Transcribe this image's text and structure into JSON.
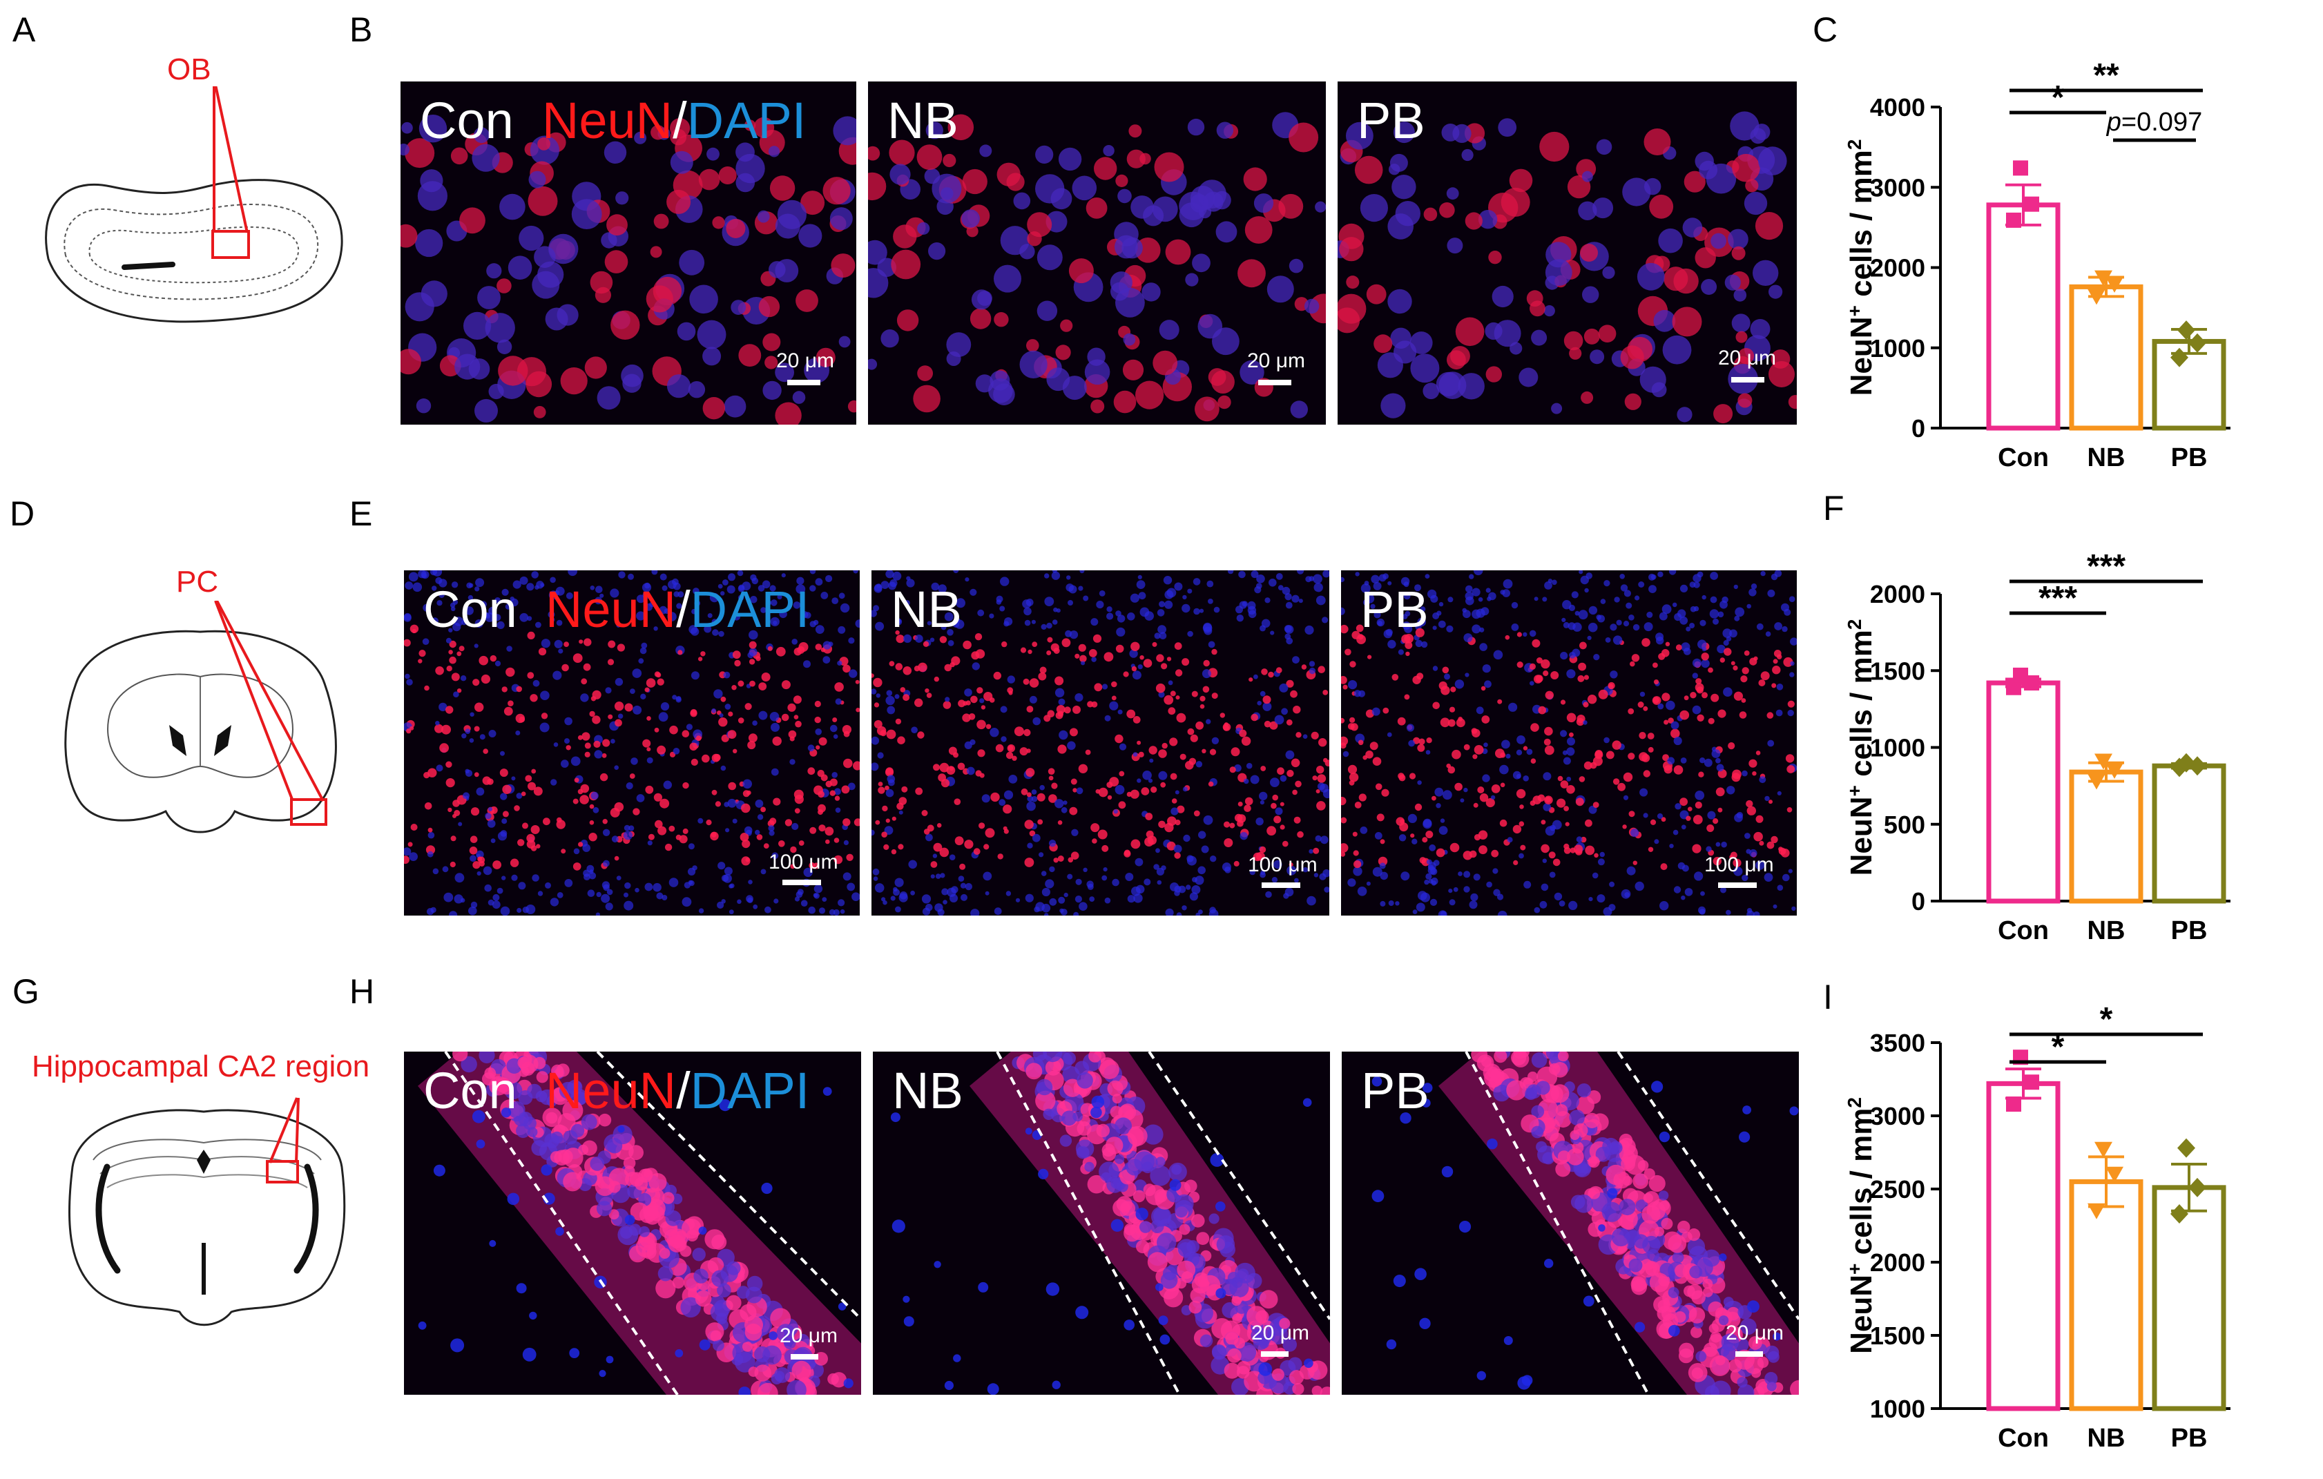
{
  "panel_letters": [
    "A",
    "B",
    "C",
    "D",
    "E",
    "F",
    "G",
    "H",
    "I"
  ],
  "regions": {
    "ob": "OB",
    "pc": "PC",
    "ca2": "Hippocampal CA2 region"
  },
  "micro": {
    "group_labels": [
      "Con",
      "NB",
      "PB"
    ],
    "stain": {
      "neun": "NeuN",
      "sep": "/",
      "dapi": "DAPI"
    },
    "scalebars": {
      "row1": "20 μm",
      "row2": "100 μm",
      "row3": "20 μm"
    }
  },
  "colors": {
    "con": "#ee2a8b",
    "nb": "#f7941d",
    "pb": "#7f7f1a",
    "region": "#e8191d"
  },
  "chart_data": [
    {
      "type": "bar",
      "panel": "C",
      "categories": [
        "Con",
        "NB",
        "PB"
      ],
      "values": [
        2780,
        1760,
        1080
      ],
      "sem": [
        250,
        120,
        150
      ],
      "points": [
        [
          2590,
          2790,
          3240
        ],
        [
          1640,
          1790,
          1870
        ],
        [
          880,
          1060,
          1220
        ]
      ],
      "ylabel": "NeuN+ cells / mm2",
      "ylim": [
        0,
        4000
      ],
      "yticks": [
        0,
        1000,
        2000,
        3000,
        4000
      ],
      "significance": [
        {
          "from": 0,
          "to": 1,
          "label": "*"
        },
        {
          "from": 1,
          "to": 2,
          "label": "p=0.097"
        },
        {
          "from": 0,
          "to": 2,
          "label": "**"
        }
      ]
    },
    {
      "type": "bar",
      "panel": "F",
      "categories": [
        "Con",
        "NB",
        "PB"
      ],
      "values": [
        1420,
        840,
        880
      ],
      "sem": [
        25,
        60,
        15
      ],
      "points": [
        [
          1390,
          1420,
          1470
        ],
        [
          780,
          850,
          910
        ],
        [
          870,
          880,
          900
        ]
      ],
      "ylabel": "NeuN+ cells / mm2",
      "ylim": [
        0,
        2000
      ],
      "yticks": [
        0,
        500,
        1000,
        1500,
        2000
      ],
      "significance": [
        {
          "from": 0,
          "to": 1,
          "label": "***"
        },
        {
          "from": 0,
          "to": 2,
          "label": "***"
        }
      ]
    },
    {
      "type": "bar",
      "panel": "I",
      "categories": [
        "Con",
        "NB",
        "PB"
      ],
      "values": [
        3220,
        2550,
        2510
      ],
      "sem": [
        100,
        170,
        160
      ],
      "points": [
        [
          3080,
          3230,
          3400
        ],
        [
          2350,
          2600,
          2770
        ],
        [
          2330,
          2510,
          2780
        ]
      ],
      "ylabel": "NeuN+ cells / mm2",
      "ylim": [
        1000,
        3500
      ],
      "yticks": [
        1000,
        1500,
        2000,
        2500,
        3000,
        3500
      ],
      "significance": [
        {
          "from": 0,
          "to": 1,
          "label": "*"
        },
        {
          "from": 0,
          "to": 2,
          "label": "*"
        }
      ]
    }
  ]
}
